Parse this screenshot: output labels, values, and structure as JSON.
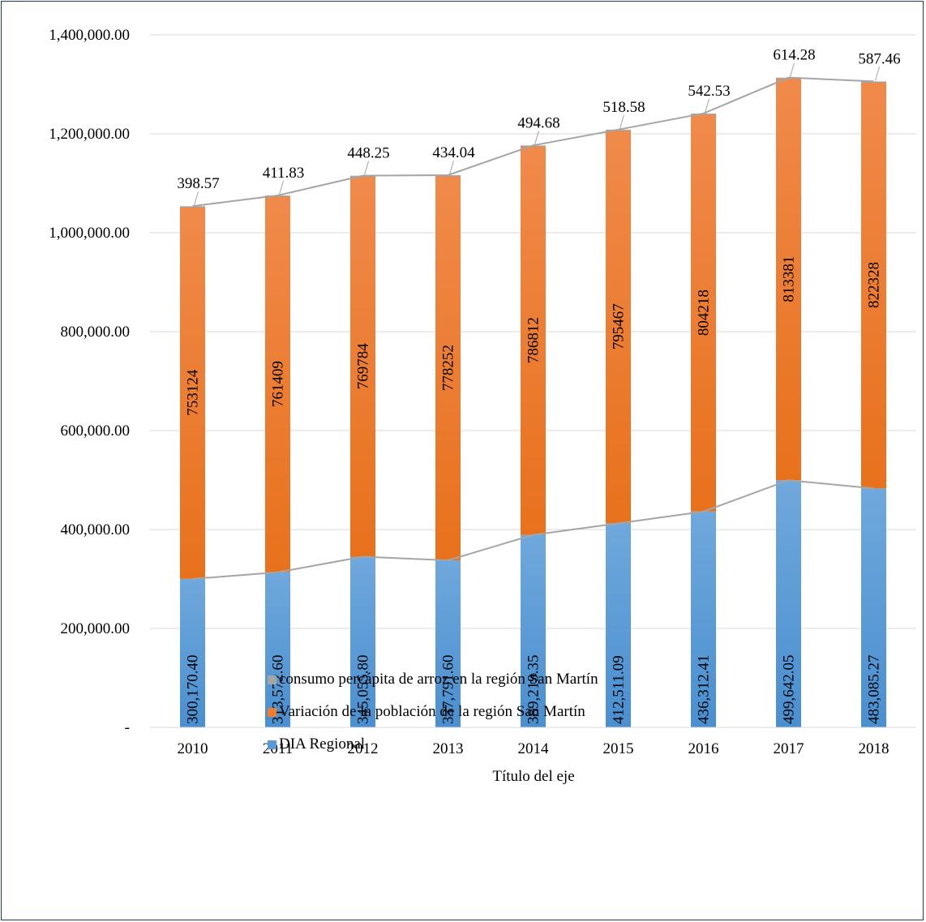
{
  "chart_data": {
    "type": "bar",
    "stacked": true,
    "categories": [
      "2010",
      "2011",
      "2012",
      "2013",
      "2014",
      "2015",
      "2016",
      "2017",
      "2018"
    ],
    "series": [
      {
        "name": "DIA Regional",
        "color": "#5b9bd5",
        "values": [
          300170.4,
          313572.6,
          345055.8,
          337791.6,
          389219.35,
          412511.09,
          436312.41,
          499642.05,
          483085.27
        ],
        "labels": [
          "300,170.40",
          "313,572.60",
          "345,055.80",
          "337,791.60",
          "389,219.35",
          "412,511.09",
          "436,312.41",
          "499,642.05",
          "483,085.27"
        ]
      },
      {
        "name": "Variación de la población de la región San Martín",
        "color": "#ed7d31",
        "values": [
          753124,
          761409,
          769784,
          778252,
          786812,
          795467,
          804218,
          813381,
          822328
        ],
        "labels": [
          "753124",
          "761409",
          "769784",
          "778252",
          "786812",
          "795467",
          "804218",
          "813381",
          "822328"
        ]
      },
      {
        "name": "consumo percápita de arroz en la región San Martín",
        "color": "#a5a5a5",
        "values": [
          398.57,
          411.83,
          448.25,
          434.04,
          494.68,
          518.58,
          542.53,
          614.28,
          587.46
        ],
        "labels": [
          "398.57",
          "411.83",
          "448.25",
          "434.04",
          "494.68",
          "518.58",
          "542.53",
          "614.28",
          "587.46"
        ]
      }
    ],
    "xlabel": "Título del eje",
    "ylabel": "",
    "ylim": [
      0,
      1400000
    ],
    "yticks": [
      {
        "value": 0,
        "label": "-"
      },
      {
        "value": 200000,
        "label": "200,000.00"
      },
      {
        "value": 400000,
        "label": "400,000.00"
      },
      {
        "value": 600000,
        "label": "600,000.00"
      },
      {
        "value": 800000,
        "label": "800,000.00"
      },
      {
        "value": 1000000,
        "label": "1,000,000.00"
      },
      {
        "value": 1200000,
        "label": "1,200,000.00"
      },
      {
        "value": 1400000,
        "label": "1,400,000.00"
      }
    ],
    "grid": true,
    "legend_position": "bottom"
  },
  "legend": [
    {
      "label": "consumo percápita de arroz en la región San Martín",
      "color": "#a5a5a5"
    },
    {
      "label": "Variación de la población de la región San Martín",
      "color": "#ed7d31"
    },
    {
      "label": "DIA Regional",
      "color": "#5b9bd5"
    }
  ]
}
